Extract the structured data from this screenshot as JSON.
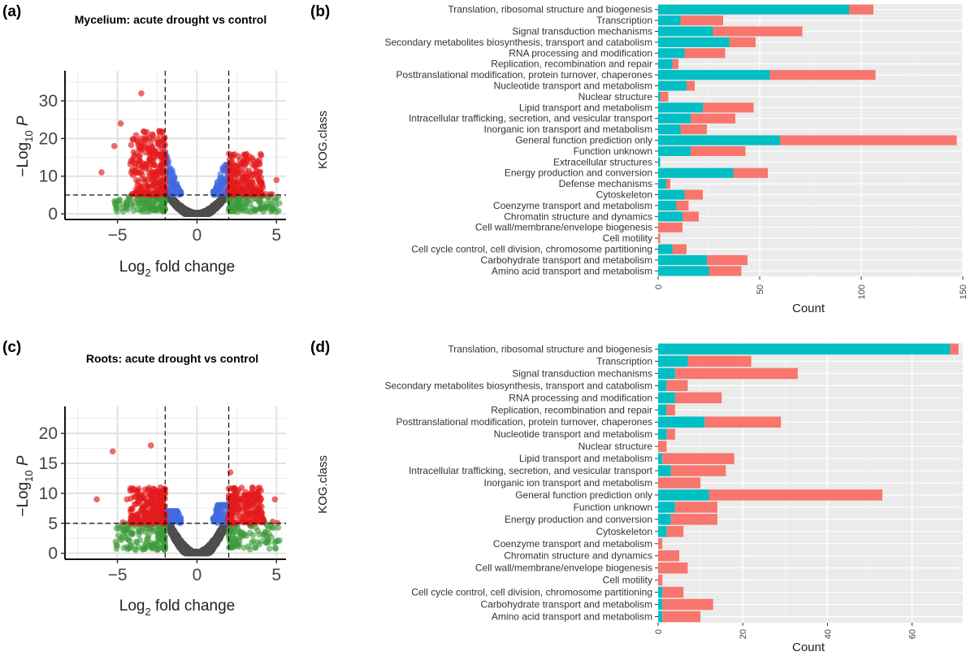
{
  "colors": {
    "teal": "#00BFC4",
    "salmon": "#F8766D",
    "red": "#E41A1C",
    "blue": "#4169E1",
    "green": "#3E9B3A",
    "grey": "#4D4D4D",
    "panel_bg": "#EBEBEB",
    "grid": "#FFFFFF"
  },
  "chart_data": [
    {
      "id": "a",
      "type": "scatter",
      "panel_label": "(a)",
      "title": "Mycelium: acute drought vs control",
      "xlabel_main": "Log",
      "xlabel_sub": "2",
      "xlabel_rest": " fold change",
      "ylabel_prefix": "−Log",
      "ylabel_sub": "10",
      "ylabel_suffix": " P",
      "xlim": [
        -8.3,
        5.6
      ],
      "ylim": [
        -1.5,
        38
      ],
      "xticks": [
        -5,
        0,
        5
      ],
      "yticks": [
        0,
        10,
        20,
        30
      ],
      "thresholds": {
        "log2fc": 2,
        "neglog10p": 5
      },
      "max_pos_y": 16,
      "max_neg_y": 22,
      "highlights": [
        [
          -3.5,
          32
        ],
        [
          -4.8,
          24
        ],
        [
          5.0,
          9
        ],
        [
          -6.0,
          11
        ],
        [
          -5.2,
          18
        ]
      ],
      "seed": 11
    },
    {
      "id": "b",
      "type": "bar",
      "stacked": true,
      "orientation": "horizontal",
      "panel_label": "(b)",
      "xlabel": "Count",
      "ylabel": "KOG.class",
      "xlim": [
        0,
        150
      ],
      "xticks": [
        0,
        50,
        100,
        150
      ],
      "categories": [
        "Translation, ribosomal structure and biogenesis",
        "Transcription",
        "Signal transduction mechanisms",
        "Secondary metabolites biosynthesis, transport and catabolism",
        "RNA processing and modification ",
        "Replication, recombination and repair",
        "Posttranslational modification, protein turnover, chaperones",
        "Nucleotide transport and metabolism",
        "Nuclear structure",
        "Lipid transport and metabolism",
        "Intracellular trafficking, secretion, and vesicular transport",
        "Inorganic ion transport and metabolism",
        "General function prediction only",
        "Function unknown",
        "Extracellular structures",
        "Energy production and conversion",
        "Defense mechanisms",
        "Cytoskeleton",
        "Coenzyme transport and metabolism",
        "Chromatin structure and dynamics",
        "Cell wall/membrane/envelope biogenesis",
        "Cell motility",
        "Cell cycle control, cell division, chromosome partitioning",
        "Carbohydrate transport and metabolism",
        "Amino acid transport and metabolism"
      ],
      "series": [
        {
          "color": "#00BFC4",
          "values": [
            94,
            11,
            27,
            35,
            13,
            7,
            55,
            14,
            1,
            22,
            16,
            11,
            60,
            16,
            1,
            37,
            4,
            13,
            9,
            12,
            0,
            0,
            7,
            24,
            25
          ]
        },
        {
          "color": "#F8766D",
          "values": [
            12,
            21,
            44,
            13,
            20,
            3,
            52,
            4,
            4,
            25,
            22,
            13,
            87,
            27,
            0,
            17,
            2,
            9,
            6,
            8,
            12,
            1,
            7,
            20,
            16
          ]
        }
      ]
    },
    {
      "id": "c",
      "type": "scatter",
      "panel_label": "(c)",
      "title": "Roots: acute drought vs control",
      "xlabel_main": "Log",
      "xlabel_sub": "2",
      "xlabel_rest": " fold change",
      "ylabel_prefix": "−Log",
      "ylabel_sub": "10",
      "ylabel_suffix": " P",
      "xlim": [
        -8.3,
        5.6
      ],
      "ylim": [
        -1.0,
        24.5
      ],
      "xticks": [
        -5,
        0,
        5
      ],
      "yticks": [
        0,
        5,
        10,
        15,
        20
      ],
      "thresholds": {
        "log2fc": 2,
        "neglog10p": 5
      },
      "max_pos_y": 11,
      "max_neg_y": 11,
      "highlights": [
        [
          -2.9,
          18
        ],
        [
          -5.3,
          17
        ],
        [
          -6.3,
          9
        ],
        [
          2.1,
          13.5
        ],
        [
          -4.4,
          9
        ],
        [
          4.9,
          9
        ],
        [
          3.7,
          10
        ]
      ],
      "seed": 29
    },
    {
      "id": "d",
      "type": "bar",
      "stacked": true,
      "orientation": "horizontal",
      "panel_label": "(d)",
      "xlabel": "Count",
      "ylabel": "KOG.class",
      "xlim": [
        0,
        72
      ],
      "xticks": [
        0,
        20,
        40,
        60
      ],
      "categories": [
        "Translation, ribosomal structure and biogenesis",
        "Transcription",
        "Signal transduction mechanisms",
        "Secondary metabolites biosynthesis, transport and catabolism",
        "RNA processing and modification ",
        "Replication, recombination and repair",
        "Posttranslational modification, protein turnover, chaperones",
        "Nucleotide transport and metabolism",
        "Nuclear structure",
        "Lipid transport and metabolism",
        "Intracellular trafficking, secretion, and vesicular transport",
        "Inorganic ion transport and metabolism",
        "General function prediction only",
        "Function unknown",
        "Energy production and conversion",
        "Cytoskeleton",
        "Coenzyme transport and metabolism",
        "Chromatin structure and dynamics",
        "Cell wall/membrane/envelope biogenesis",
        "Cell motility",
        "Cell cycle control, cell division, chromosome partitioning",
        "Carbohydrate transport and metabolism",
        "Amino acid transport and metabolism"
      ],
      "series": [
        {
          "color": "#00BFC4",
          "values": [
            69,
            7,
            4,
            2,
            4,
            2,
            11,
            2,
            0,
            1,
            3,
            0,
            12,
            4,
            3,
            2,
            0,
            0,
            0,
            0,
            1,
            1,
            1
          ]
        },
        {
          "color": "#F8766D",
          "values": [
            2,
            15,
            29,
            5,
            11,
            2,
            18,
            2,
            2,
            17,
            13,
            10,
            41,
            10,
            11,
            4,
            1,
            5,
            7,
            1,
            5,
            12,
            9
          ]
        }
      ]
    }
  ]
}
